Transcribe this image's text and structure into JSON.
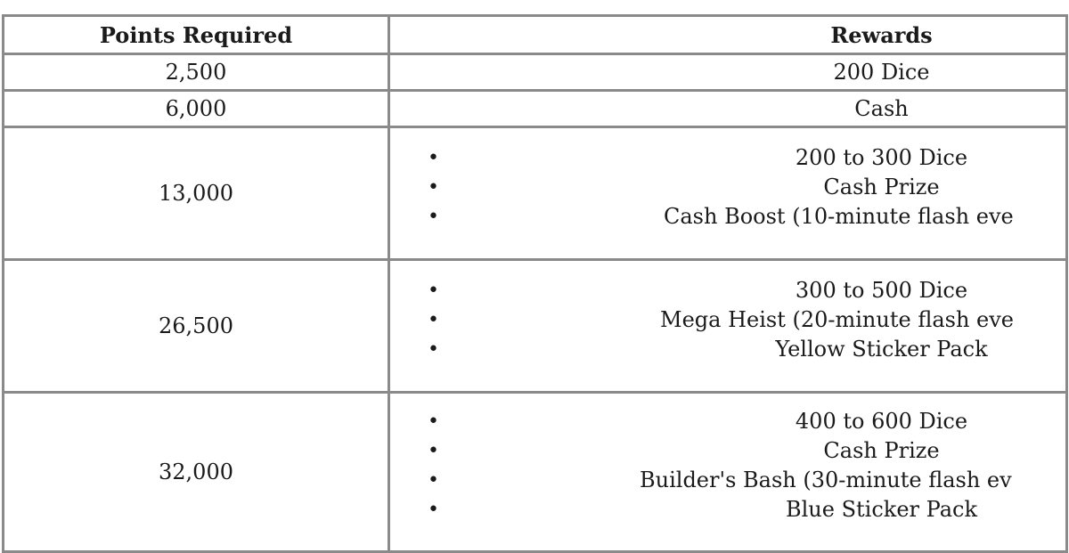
{
  "table": {
    "headers": [
      "Points Required",
      "Rewards"
    ],
    "rows": [
      {
        "points": "2,500",
        "rewards": [
          "200 Dice"
        ]
      },
      {
        "points": "6,000",
        "rewards": [
          "Cash"
        ]
      },
      {
        "points": "13,000",
        "rewards": [
          "200 to 300 Dice",
          "Cash Prize",
          "Cash Boost (10-minute flash eve"
        ]
      },
      {
        "points": "26,500",
        "rewards": [
          "300 to 500 Dice",
          "Mega Heist (20-minute flash eve",
          "Yellow Sticker Pack"
        ]
      },
      {
        "points": "32,000",
        "rewards": [
          "400 to 600 Dice",
          "Cash Prize",
          "Builder's Bash (30-minute flash ev",
          "Blue Sticker Pack"
        ]
      }
    ]
  },
  "bullet_icon": "•"
}
